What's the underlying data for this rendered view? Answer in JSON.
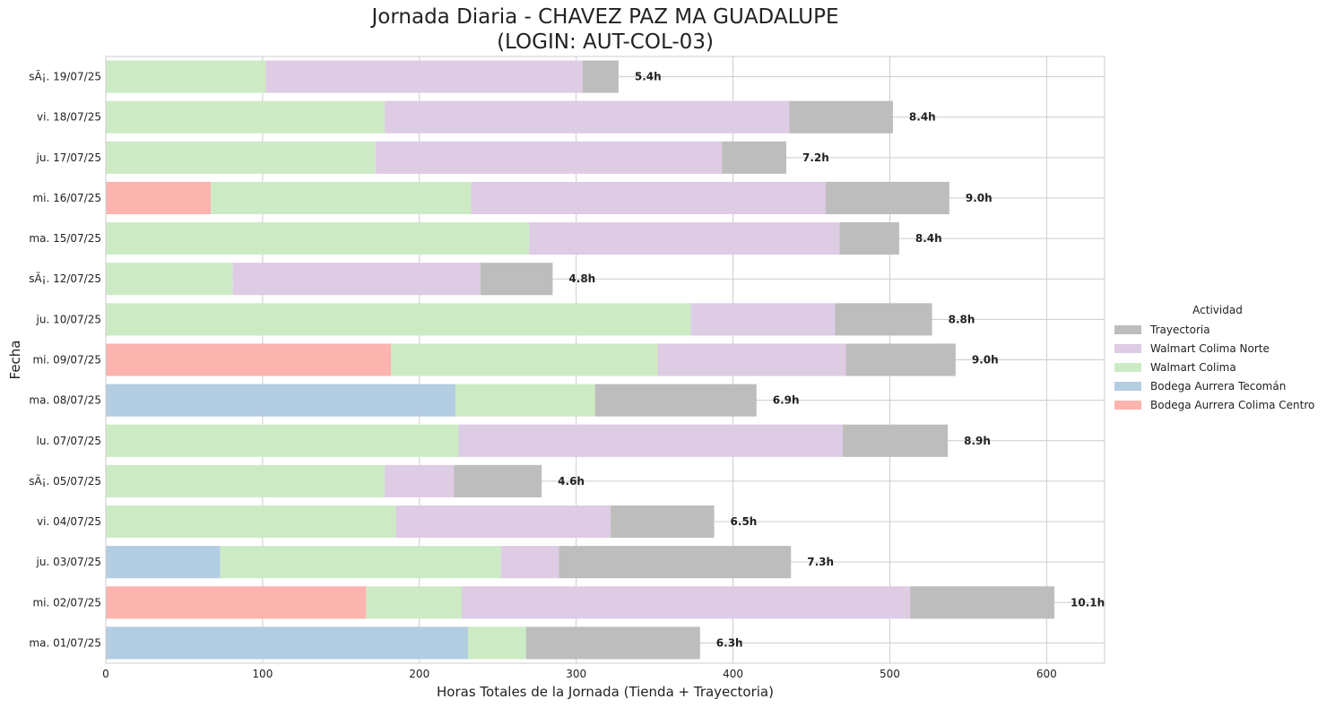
{
  "chart_data": {
    "type": "bar",
    "orientation": "horizontal",
    "stacked": true,
    "title": "Jornada Diaria - CHAVEZ PAZ MA GUADALUPE",
    "subtitle": "(LOGIN: AUT-COL-03)",
    "xlabel": "Horas Totales de la Jornada (Tienda + Trayectoria)",
    "ylabel": "Fecha",
    "xlim": [
      0,
      637
    ],
    "xticks": [
      0,
      100,
      200,
      300,
      400,
      500,
      600
    ],
    "grid": true,
    "legend_title": "Actividad",
    "legend_position": "right",
    "categories": [
      "ma. 01/07/25",
      "mi. 02/07/25",
      "ju. 03/07/25",
      "vi. 04/07/25",
      "sÃ¡. 05/07/25",
      "lu. 07/07/25",
      "ma. 08/07/25",
      "mi. 09/07/25",
      "ju. 10/07/25",
      "sÃ¡. 12/07/25",
      "ma. 15/07/25",
      "mi. 16/07/25",
      "ju. 17/07/25",
      "vi. 18/07/25",
      "sÃ¡. 19/07/25"
    ],
    "series": [
      {
        "name": "Bodega Aurrera Colima Centro",
        "color": "#fbb4ae",
        "values": [
          0,
          166,
          0,
          0,
          0,
          0,
          0,
          182,
          0,
          0,
          0,
          67,
          0,
          0,
          0
        ]
      },
      {
        "name": "Bodega Aurrera Tecomán",
        "color": "#b3cde3",
        "values": [
          231,
          0,
          73,
          0,
          0,
          0,
          223,
          0,
          0,
          0,
          0,
          0,
          0,
          0,
          0
        ]
      },
      {
        "name": "Walmart Colima",
        "color": "#ccebc5",
        "values": [
          37,
          61,
          179,
          185,
          178,
          225,
          89,
          170,
          373,
          81,
          270,
          166,
          172,
          178,
          102
        ]
      },
      {
        "name": "Walmart Colima Norte",
        "color": "#decbe4",
        "values": [
          0,
          286,
          37,
          137,
          44,
          245,
          0,
          120,
          92,
          158,
          198,
          226,
          221,
          258,
          202
        ]
      },
      {
        "name": "Trayectoria",
        "color": "#bdbdbd",
        "values": [
          111,
          92,
          148,
          66,
          56,
          67,
          103,
          70,
          62,
          46,
          38,
          79,
          41,
          66,
          23
        ]
      }
    ],
    "bar_labels": [
      "6.3h",
      "10.1h",
      "7.3h",
      "6.5h",
      "4.6h",
      "8.9h",
      "6.9h",
      "9.0h",
      "8.8h",
      "4.8h",
      "8.4h",
      "9.0h",
      "7.2h",
      "8.4h",
      "5.4h"
    ],
    "legend_order": [
      "Trayectoria",
      "Walmart Colima Norte",
      "Walmart Colima",
      "Bodega Aurrera Tecomán",
      "Bodega Aurrera Colima Centro"
    ]
  }
}
